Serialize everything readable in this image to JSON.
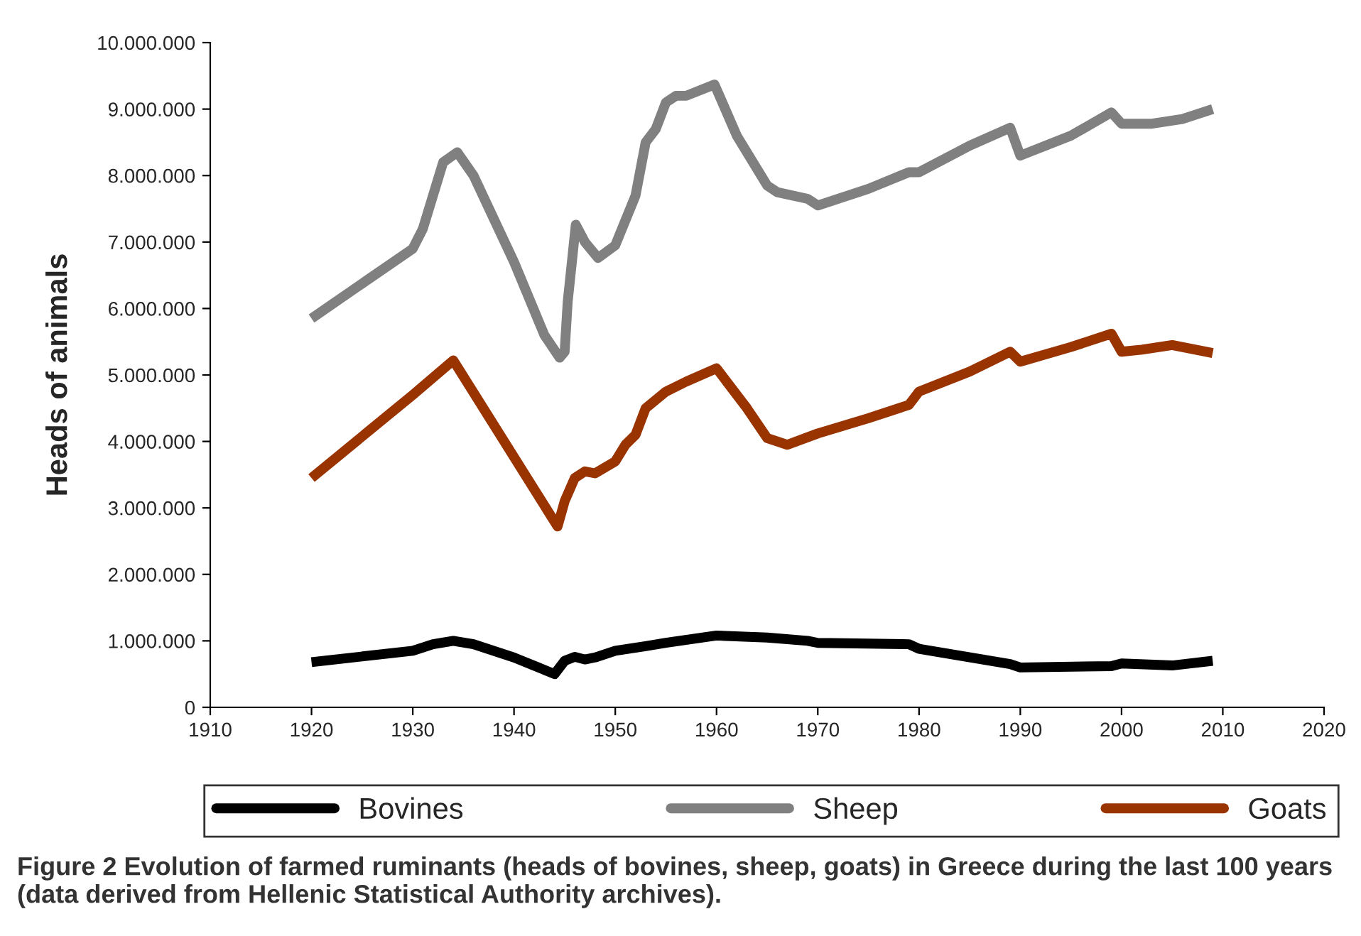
{
  "chart_data": {
    "type": "line",
    "ylabel": "Heads of animals",
    "xlim": [
      1910,
      2020
    ],
    "xticks": [
      1910,
      1920,
      1930,
      1940,
      1950,
      1960,
      1970,
      1980,
      1990,
      2000,
      2010,
      2020
    ],
    "ylim": [
      0,
      10000000
    ],
    "yticks": [
      0,
      {
        "value": 1000000,
        "label": "1.000.000"
      },
      {
        "value": 2000000,
        "label": "2.000.000"
      },
      {
        "value": 3000000,
        "label": "3.000.000"
      },
      {
        "value": 4000000,
        "label": "4.000.000"
      },
      {
        "value": 5000000,
        "label": "5.000.000"
      },
      {
        "value": 6000000,
        "label": "6.000.000"
      },
      {
        "value": 7000000,
        "label": "7.000.000"
      },
      {
        "value": 8000000,
        "label": "8.000.000"
      },
      {
        "value": 9000000,
        "label": "9.000.000"
      },
      {
        "value": 10000000,
        "label": "10.000.000"
      }
    ],
    "grid": false,
    "legend": "bottom",
    "marker": "none",
    "line_style": "solid",
    "series": [
      {
        "name": "Bovines",
        "color": "#000000",
        "x": [
          1920,
          1930,
          1932,
          1934,
          1936,
          1940,
          1944,
          1945,
          1946,
          1947,
          1948,
          1950,
          1953,
          1955,
          1960,
          1965,
          1969,
          1970,
          1979,
          1980,
          1989,
          1990,
          1999,
          2000,
          2005,
          2009
        ],
        "values": [
          680000,
          850000,
          950000,
          1000000,
          950000,
          750000,
          500000,
          700000,
          760000,
          720000,
          750000,
          850000,
          920000,
          970000,
          1080000,
          1050000,
          1000000,
          970000,
          950000,
          880000,
          650000,
          600000,
          620000,
          660000,
          630000,
          700000
        ]
      },
      {
        "name": "Sheep",
        "color": "#808080",
        "x": [
          1920,
          1930,
          1931,
          1933,
          1934.4,
          1936,
          1940,
          1943,
          1944.5,
          1945,
          1945.3,
          1946.1,
          1947,
          1948.3,
          1950,
          1952,
          1953,
          1954,
          1955,
          1956,
          1957,
          1959.8,
          1962,
          1965,
          1966,
          1969,
          1970,
          1975,
          1979,
          1980,
          1985,
          1989,
          1990,
          1995,
          1999,
          2000,
          2003,
          2006,
          2009
        ],
        "values": [
          5850000,
          6900000,
          7200000,
          8200000,
          8350000,
          8000000,
          6700000,
          5600000,
          5260000,
          5350000,
          6100000,
          7260000,
          7000000,
          6760000,
          6950000,
          7700000,
          8500000,
          8700000,
          9100000,
          9200000,
          9200000,
          9370000,
          8600000,
          7850000,
          7750000,
          7650000,
          7550000,
          7800000,
          8050000,
          8050000,
          8450000,
          8720000,
          8300000,
          8600000,
          8950000,
          8780000,
          8780000,
          8850000,
          9000000
        ]
      },
      {
        "name": "Goats",
        "color": "#993300",
        "x": [
          1920,
          1930,
          1934,
          1944.3,
          1945,
          1946,
          1947,
          1948,
          1950,
          1951,
          1952,
          1953,
          1955,
          1957,
          1960,
          1963,
          1965,
          1967,
          1970,
          1975,
          1979,
          1980,
          1985,
          1989,
          1990,
          1995,
          1999,
          2000,
          2002,
          2005,
          2009
        ],
        "values": [
          3450000,
          4700000,
          5220000,
          2720000,
          3100000,
          3450000,
          3550000,
          3520000,
          3700000,
          3950000,
          4100000,
          4500000,
          4750000,
          4900000,
          5100000,
          4500000,
          4050000,
          3950000,
          4120000,
          4350000,
          4550000,
          4750000,
          5050000,
          5350000,
          5200000,
          5420000,
          5620000,
          5350000,
          5380000,
          5450000,
          5330000
        ]
      }
    ],
    "annotations": [
      "Figure 2 Evolution of farmed ruminants (heads of bovines, sheep, goats) in Greece during the last 100 years (data derived from Hellenic Statistical Authority archives)."
    ]
  }
}
